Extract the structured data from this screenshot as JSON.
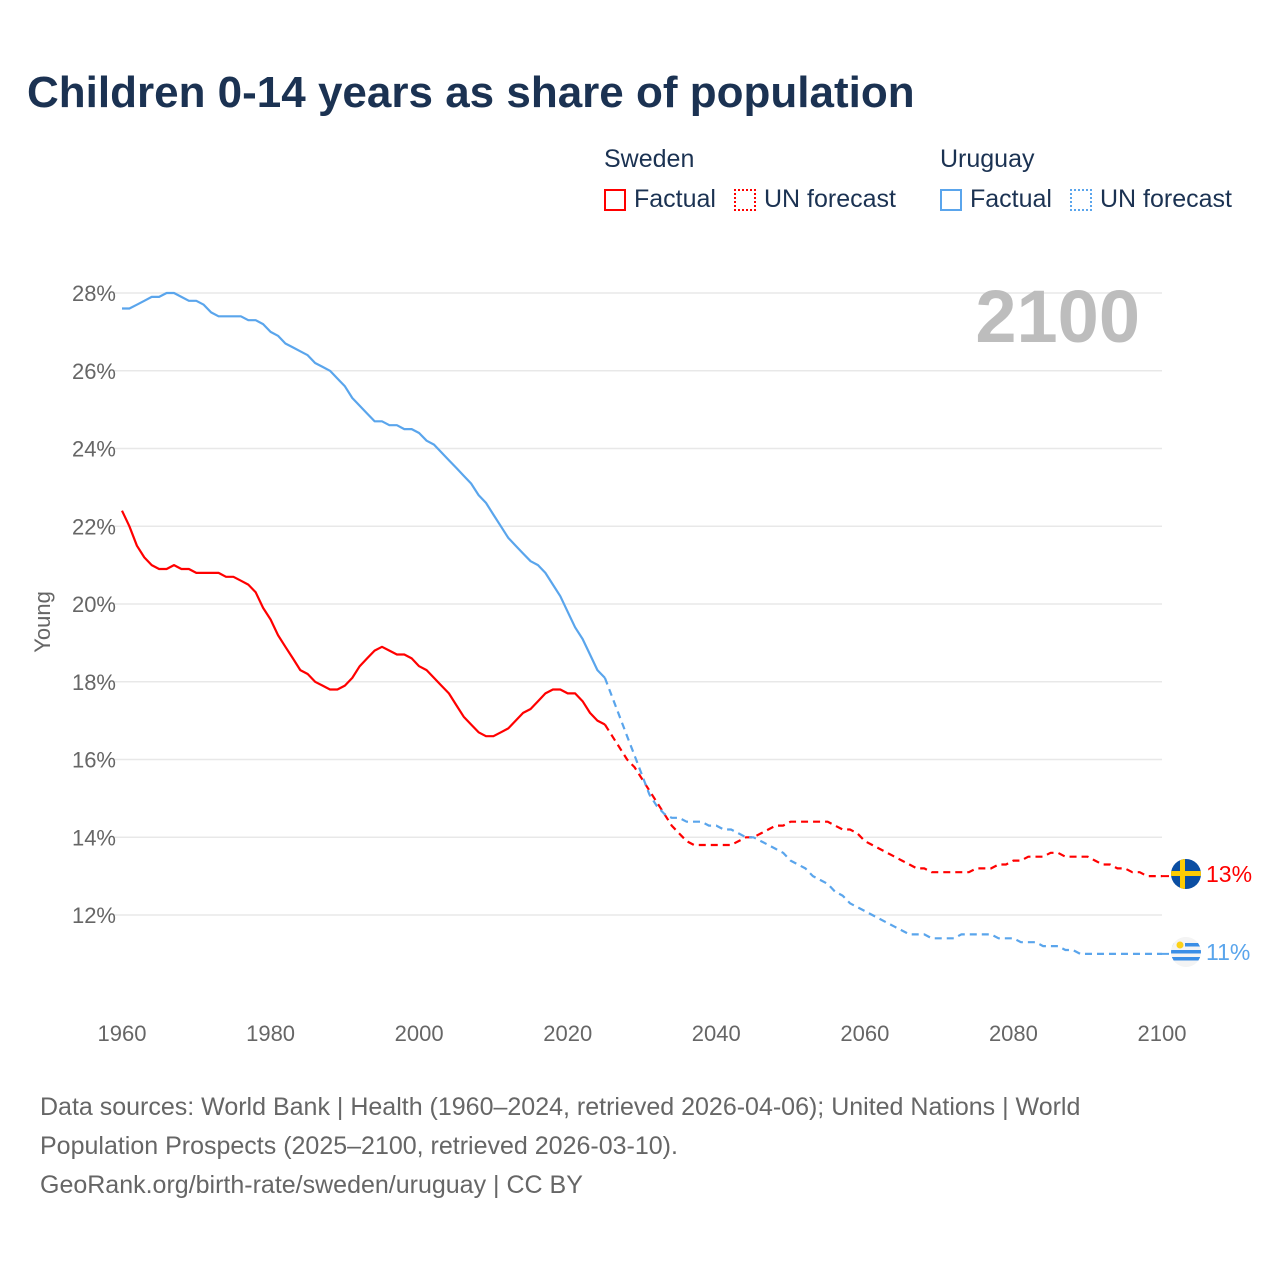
{
  "title": "Children 0-14 years as share of population",
  "legend": {
    "groups": [
      {
        "country": "Sweden",
        "color": "#ff0000",
        "items": [
          "Factual",
          "UN forecast"
        ]
      },
      {
        "country": "Uruguay",
        "color": "#5aa5ec",
        "items": [
          "Factual",
          "UN forecast"
        ]
      }
    ]
  },
  "year_watermark": "2100",
  "end_labels": {
    "sweden": "13%",
    "uruguay": "11%"
  },
  "footer": {
    "line1": "Data sources: World Bank | Health (1960–2024, retrieved 2026-04-06); United Nations | World Population Prospects (2025–2100, retrieved 2026-03-10).",
    "line2": "GeoRank.org/birth-rate/sweden/uruguay | CC BY"
  },
  "chart_data": {
    "type": "line",
    "title": "Children 0-14 years as share of population",
    "xlabel": "",
    "ylabel": "Young",
    "xlim": [
      1960,
      2100
    ],
    "ylim": [
      10.3,
      28.4
    ],
    "x_ticks": [
      "1960",
      "1980",
      "2000",
      "2020",
      "2040",
      "2060",
      "2080",
      "2100"
    ],
    "x_tick_values": [
      1960,
      1980,
      2000,
      2020,
      2040,
      2060,
      2080,
      2100
    ],
    "y_ticks": [
      "12%",
      "14%",
      "16%",
      "18%",
      "20%",
      "22%",
      "24%",
      "26%",
      "28%"
    ],
    "y_tick_values": [
      12,
      14,
      16,
      18,
      20,
      22,
      24,
      26,
      28
    ],
    "grid": true,
    "series": [
      {
        "name": "Sweden Factual",
        "color": "#ff0000",
        "dashed": false,
        "start_year": 1960,
        "values": [
          22.4,
          22.0,
          21.5,
          21.2,
          21.0,
          20.9,
          20.9,
          21.0,
          20.9,
          20.9,
          20.8,
          20.8,
          20.8,
          20.8,
          20.7,
          20.7,
          20.6,
          20.5,
          20.3,
          19.9,
          19.6,
          19.2,
          18.9,
          18.6,
          18.3,
          18.2,
          18.0,
          17.9,
          17.8,
          17.8,
          17.9,
          18.1,
          18.4,
          18.6,
          18.8,
          18.9,
          18.8,
          18.7,
          18.7,
          18.6,
          18.4,
          18.3,
          18.1,
          17.9,
          17.7,
          17.4,
          17.1,
          16.9,
          16.7,
          16.6,
          16.6,
          16.7,
          16.8,
          17.0,
          17.2,
          17.3,
          17.5,
          17.7,
          17.8,
          17.8,
          17.7,
          17.7,
          17.5,
          17.2,
          17.0,
          16.9
        ]
      },
      {
        "name": "Sweden UN forecast",
        "color": "#ff0000",
        "dashed": true,
        "start_year": 2025,
        "values": [
          16.9,
          16.6,
          16.3,
          16.0,
          15.8,
          15.5,
          15.2,
          14.9,
          14.6,
          14.3,
          14.1,
          13.9,
          13.8,
          13.8,
          13.8,
          13.8,
          13.8,
          13.8,
          13.9,
          14.0,
          14.0,
          14.1,
          14.2,
          14.3,
          14.3,
          14.4,
          14.4,
          14.4,
          14.4,
          14.4,
          14.4,
          14.3,
          14.2,
          14.2,
          14.1,
          13.9,
          13.8,
          13.7,
          13.6,
          13.5,
          13.4,
          13.3,
          13.2,
          13.2,
          13.1,
          13.1,
          13.1,
          13.1,
          13.1,
          13.1,
          13.2,
          13.2,
          13.2,
          13.3,
          13.3,
          13.4,
          13.4,
          13.5,
          13.5,
          13.5,
          13.6,
          13.6,
          13.5,
          13.5,
          13.5,
          13.5,
          13.4,
          13.3,
          13.3,
          13.2,
          13.2,
          13.1,
          13.1,
          13.0,
          13.0,
          13.0
        ]
      },
      {
        "name": "Uruguay Factual",
        "color": "#5aa5ec",
        "dashed": false,
        "start_year": 1960,
        "values": [
          27.6,
          27.6,
          27.7,
          27.8,
          27.9,
          27.9,
          28.0,
          28.0,
          27.9,
          27.8,
          27.8,
          27.7,
          27.5,
          27.4,
          27.4,
          27.4,
          27.4,
          27.3,
          27.3,
          27.2,
          27.0,
          26.9,
          26.7,
          26.6,
          26.5,
          26.4,
          26.2,
          26.1,
          26.0,
          25.8,
          25.6,
          25.3,
          25.1,
          24.9,
          24.7,
          24.7,
          24.6,
          24.6,
          24.5,
          24.5,
          24.4,
          24.2,
          24.1,
          23.9,
          23.7,
          23.5,
          23.3,
          23.1,
          22.8,
          22.6,
          22.3,
          22.0,
          21.7,
          21.5,
          21.3,
          21.1,
          21.0,
          20.8,
          20.5,
          20.2,
          19.8,
          19.4,
          19.1,
          18.7,
          18.3,
          18.1
        ]
      },
      {
        "name": "Uruguay UN forecast",
        "color": "#5aa5ec",
        "dashed": true,
        "start_year": 2025,
        "values": [
          18.1,
          17.6,
          17.1,
          16.6,
          16.1,
          15.6,
          15.1,
          14.8,
          14.6,
          14.5,
          14.5,
          14.4,
          14.4,
          14.4,
          14.3,
          14.3,
          14.2,
          14.2,
          14.1,
          14.0,
          14.0,
          13.9,
          13.8,
          13.7,
          13.6,
          13.4,
          13.3,
          13.2,
          13.0,
          12.9,
          12.8,
          12.6,
          12.5,
          12.3,
          12.2,
          12.1,
          12.0,
          11.9,
          11.8,
          11.7,
          11.6,
          11.5,
          11.5,
          11.5,
          11.4,
          11.4,
          11.4,
          11.4,
          11.5,
          11.5,
          11.5,
          11.5,
          11.5,
          11.4,
          11.4,
          11.4,
          11.3,
          11.3,
          11.3,
          11.2,
          11.2,
          11.2,
          11.1,
          11.1,
          11.0,
          11.0,
          11.0,
          11.0,
          11.0,
          11.0,
          11.0,
          11.0,
          11.0,
          11.0,
          11.0,
          11.0
        ]
      }
    ]
  }
}
